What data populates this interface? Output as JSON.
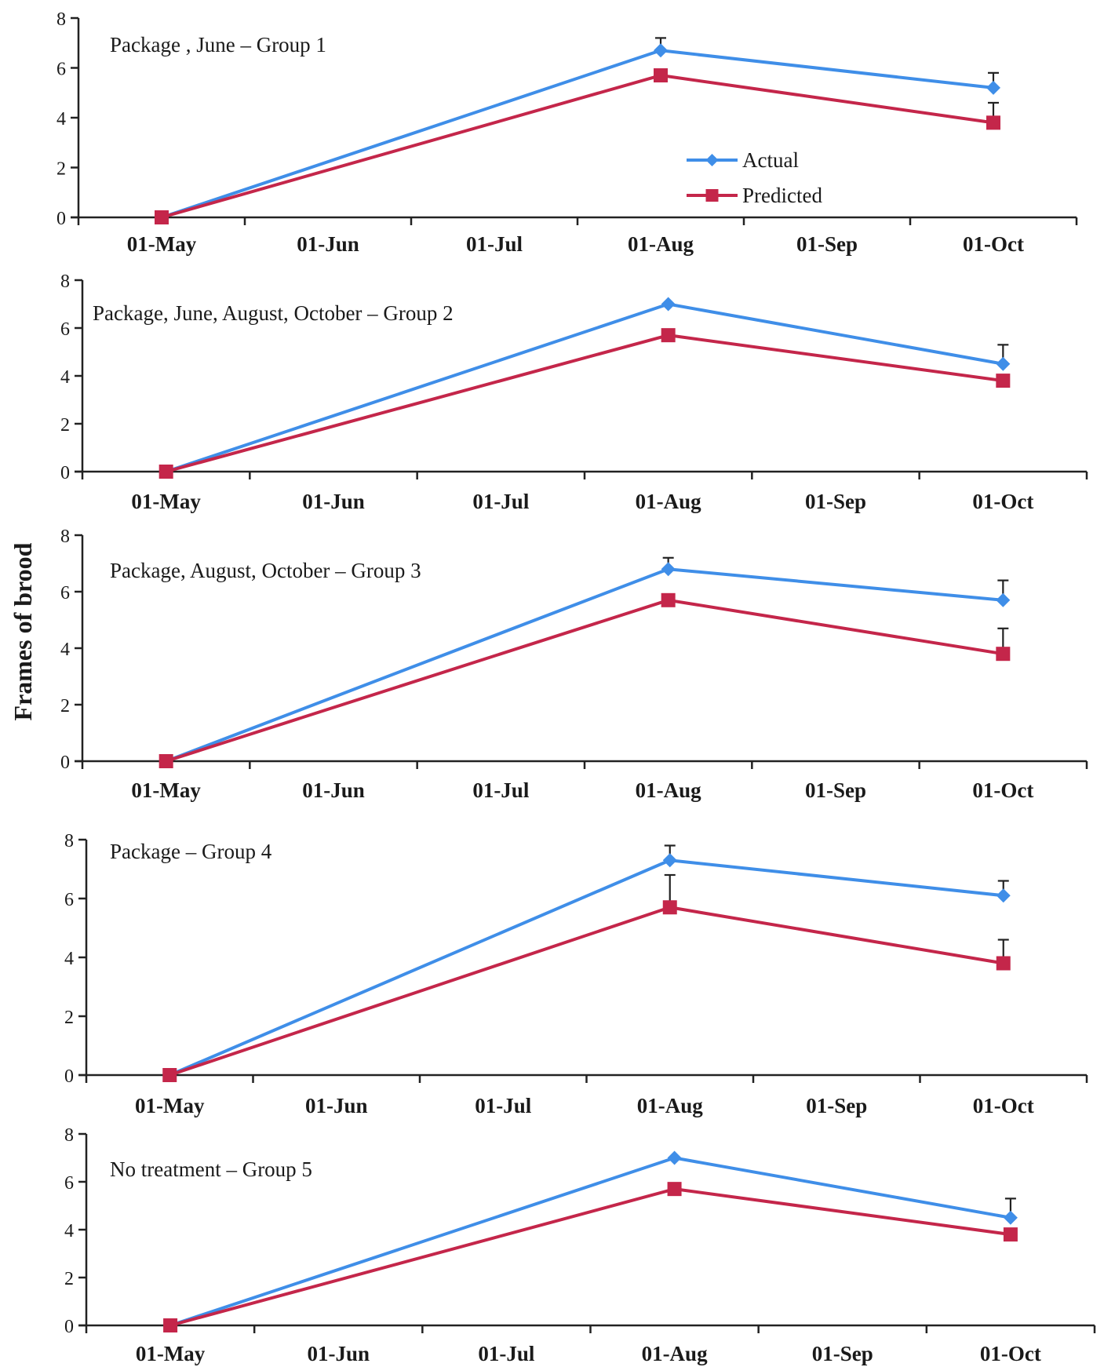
{
  "chart_data": {
    "type": "line",
    "ylabel": "Frames of brood",
    "colors": {
      "Actual": "#3f8ee8",
      "Predicted": "#c4264a",
      "axis": "#222222"
    },
    "legend": {
      "placement": "inside-first-panel-center-right",
      "entries": [
        "Actual",
        "Predicted"
      ]
    },
    "panels": [
      {
        "title": "Package , June – Group 1",
        "categories": [
          "01-May",
          "01-Jun",
          "01-Jul",
          "01-Aug",
          "01-Sep",
          "01-Oct"
        ],
        "ylim": [
          0,
          8
        ],
        "yticks": [
          0,
          2,
          4,
          6,
          8
        ],
        "series": [
          {
            "name": "Actual",
            "marker": "diamond",
            "x": [
              "01-May",
              "01-Aug",
              "01-Oct"
            ],
            "values": [
              0,
              6.7,
              5.2
            ],
            "errors": [
              0,
              0.5,
              0.6
            ]
          },
          {
            "name": "Predicted",
            "marker": "square",
            "x": [
              "01-May",
              "01-Aug",
              "01-Oct"
            ],
            "values": [
              0,
              5.7,
              3.8
            ],
            "errors": [
              0,
              0,
              0.8
            ]
          }
        ]
      },
      {
        "title": "Package, June, August, October – Group 2",
        "categories": [
          "01-May",
          "01-Jun",
          "01-Jul",
          "01-Aug",
          "01-Sep",
          "01-Oct"
        ],
        "ylim": [
          0,
          8
        ],
        "yticks": [
          0,
          2,
          4,
          6,
          8
        ],
        "series": [
          {
            "name": "Actual",
            "marker": "diamond",
            "x": [
              "01-May",
              "01-Aug",
              "01-Oct"
            ],
            "values": [
              0,
              7.0,
              4.5
            ],
            "errors": [
              0,
              0,
              0.8
            ]
          },
          {
            "name": "Predicted",
            "marker": "square",
            "x": [
              "01-May",
              "01-Aug",
              "01-Oct"
            ],
            "values": [
              0,
              5.7,
              3.8
            ],
            "errors": [
              0,
              0,
              0
            ]
          }
        ]
      },
      {
        "title": "Package, August, October – Group 3",
        "categories": [
          "01-May",
          "01-Jun",
          "01-Jul",
          "01-Aug",
          "01-Sep",
          "01-Oct"
        ],
        "ylim": [
          0,
          8
        ],
        "yticks": [
          0,
          2,
          4,
          6,
          8
        ],
        "series": [
          {
            "name": "Actual",
            "marker": "diamond",
            "x": [
              "01-May",
              "01-Aug",
              "01-Oct"
            ],
            "values": [
              0,
              6.8,
              5.7
            ],
            "errors": [
              0,
              0.4,
              0.7
            ]
          },
          {
            "name": "Predicted",
            "marker": "square",
            "x": [
              "01-May",
              "01-Aug",
              "01-Oct"
            ],
            "values": [
              0,
              5.7,
              3.8
            ],
            "errors": [
              0,
              0,
              0.9
            ]
          }
        ]
      },
      {
        "title": "Package – Group 4",
        "categories": [
          "01-May",
          "01-Jun",
          "01-Jul",
          "01-Aug",
          "01-Sep",
          "01-Oct"
        ],
        "ylim": [
          0,
          8
        ],
        "yticks": [
          0,
          2,
          4,
          6,
          8
        ],
        "series": [
          {
            "name": "Actual",
            "marker": "diamond",
            "x": [
              "01-May",
              "01-Aug",
              "01-Oct"
            ],
            "values": [
              0,
              7.3,
              6.1
            ],
            "errors": [
              0,
              0.5,
              0.5
            ]
          },
          {
            "name": "Predicted",
            "marker": "square",
            "x": [
              "01-May",
              "01-Aug",
              "01-Oct"
            ],
            "values": [
              0,
              5.7,
              3.8
            ],
            "errors": [
              0,
              1.1,
              0.8
            ]
          }
        ]
      },
      {
        "title": "No treatment – Group 5",
        "categories": [
          "01-May",
          "01-Jun",
          "01-Jul",
          "01-Aug",
          "01-Sep",
          "01-Oct"
        ],
        "ylim": [
          0,
          8
        ],
        "yticks": [
          0,
          2,
          4,
          6,
          8
        ],
        "series": [
          {
            "name": "Actual",
            "marker": "diamond",
            "x": [
              "01-May",
              "01-Aug",
              "01-Oct"
            ],
            "values": [
              0,
              7.0,
              4.5
            ],
            "errors": [
              0,
              0,
              0.8
            ]
          },
          {
            "name": "Predicted",
            "marker": "square",
            "x": [
              "01-May",
              "01-Aug",
              "01-Oct"
            ],
            "values": [
              0,
              5.7,
              3.8
            ],
            "errors": [
              0,
              0,
              0
            ]
          }
        ]
      }
    ]
  }
}
